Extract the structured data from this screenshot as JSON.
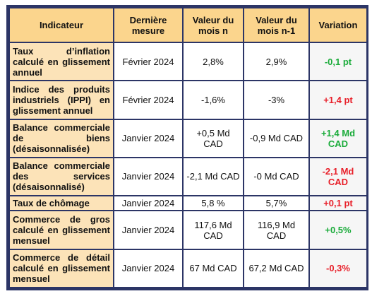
{
  "headers": {
    "indicator": "Indicateur",
    "last": "Dernière mesure",
    "month_n": "Valeur du mois n",
    "month_n1": "Valeur du mois n-1",
    "variation": "Variation"
  },
  "rows": [
    {
      "indicator": "Taux d’inflation calculé en glissement annuel",
      "last": "Février 2024",
      "n": "2,8%",
      "n1": "2,9%",
      "variation": "-0,1 pt",
      "var_color": "pos"
    },
    {
      "indicator": "Indice des produits industriels (IPPI) en glissement annuel",
      "last": "Février 2024",
      "n": "-1,6%",
      "n1": "-3%",
      "variation": "+1,4 pt",
      "var_color": "neg"
    },
    {
      "indicator": "Balance commerciale de biens (désaisonnalisée)",
      "last": "Janvier 2024",
      "n": "+0,5 Md CAD",
      "n1": "-0,9 Md CAD",
      "variation": "+1,4 Md CAD",
      "var_color": "pos"
    },
    {
      "indicator": "Balance commerciale des services (désaisonnalisé)",
      "last": "Janvier 2024",
      "n": "-2,1 Md CAD",
      "n1": "-0 Md CAD",
      "variation": "-2,1 Md CAD",
      "var_color": "neg"
    },
    {
      "indicator": "Taux de chômage",
      "last": "Janvier 2024",
      "n": "5,8 %",
      "n1": "5,7%",
      "variation": "+0,1 pt",
      "var_color": "neg"
    },
    {
      "indicator": "Commerce de gros calculé en glissement mensuel",
      "last": "Janvier 2024",
      "n": "117,6 Md CAD",
      "n1": "116,9 Md CAD",
      "variation": "+0,5%",
      "var_color": "pos"
    },
    {
      "indicator": "Commerce de détail calculé en glissement mensuel",
      "last": "Janvier 2024",
      "n": "67 Md CAD",
      "n1": "67,2 Md CAD",
      "variation": "-0,3%",
      "var_color": "neg"
    }
  ],
  "colors": {
    "border": "#2c3566",
    "header_bg": "#fbd58d",
    "indicator_bg": "#fce3b8",
    "positive": "#1aab3a",
    "negative": "#e8202a"
  }
}
